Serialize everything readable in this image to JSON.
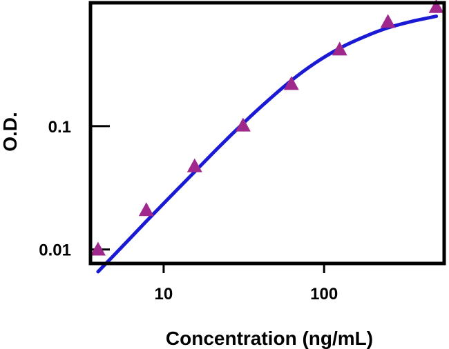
{
  "chart_data": {
    "type": "scatter",
    "title": "",
    "xlabel": "Concentration (ng/mL)",
    "ylabel": "O.D.",
    "x_scale": "log",
    "y_scale": "log",
    "xlim": [
      3.5,
      560
    ],
    "ylim": [
      0.0077,
      1.0
    ],
    "x_ticks": [
      {
        "value": 10,
        "label": "10"
      },
      {
        "value": 100,
        "label": "100"
      }
    ],
    "y_ticks": [
      {
        "value": 0.01,
        "label": "0.01"
      },
      {
        "value": 0.1,
        "label": "0.1"
      }
    ],
    "grid": false,
    "legend": "none",
    "series": [
      {
        "kind": "points",
        "marker": "triangle",
        "color": "#a0288c",
        "x": [
          3.9,
          7.8,
          15.6,
          31.25,
          62.5,
          125,
          250,
          500
        ],
        "y": [
          0.0099,
          0.0207,
          0.0469,
          0.1003,
          0.2177,
          0.4144,
          0.6936,
          0.9166
        ]
      },
      {
        "kind": "fit-curve",
        "color": "#1a1ad4",
        "x": [
          3.9,
          5.5,
          7.8,
          11,
          15.6,
          22,
          31.25,
          44,
          62.5,
          88,
          125,
          177,
          250,
          354,
          500
        ],
        "y": [
          0.0066,
          0.0105,
          0.0169,
          0.0268,
          0.0426,
          0.0673,
          0.1051,
          0.1584,
          0.2342,
          0.3249,
          0.4276,
          0.5283,
          0.6266,
          0.7074,
          0.7773
        ]
      }
    ],
    "colors": {
      "frame": "#000000",
      "background": "#ffffff"
    }
  }
}
